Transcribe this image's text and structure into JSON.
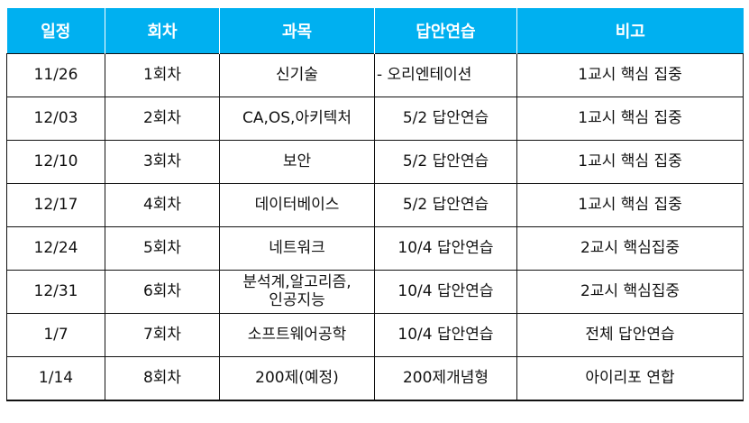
{
  "header": [
    "일정",
    "회차",
    "과목",
    "답안연습",
    "비고"
  ],
  "rows": [
    {
      "date": "11/26",
      "session": "1회차",
      "subject": "신기술",
      "practice": "- 오리엔테이션",
      "note": "1교시 핵심 집중"
    },
    {
      "date": "12/03",
      "session": "2회차",
      "subject": "CA,OS,아키텍처",
      "practice": "5/2 답안연습",
      "note": "1교시 핵심 집중"
    },
    {
      "date": "12/10",
      "session": "3회차",
      "subject": "보안",
      "practice": "5/2 답안연습",
      "note": "1교시 핵심 집중"
    },
    {
      "date": "12/17",
      "session": "4회차",
      "subject": "데이터베이스",
      "practice": "5/2 답안연습",
      "note": "1교시 핵심 집중"
    },
    {
      "date": "12/24",
      "session": "5회차",
      "subject": "네트워크",
      "practice": "10/4 답안연습",
      "note": "2교시 핵심집중"
    },
    {
      "date": "12/31",
      "session": "6회차",
      "subject_line1": "분석계,알고리즘,",
      "subject_line2": "인공지능",
      "practice": "10/4 답안연습",
      "note": "2교시 핵심집중"
    },
    {
      "date": "1/7",
      "session": "7회차",
      "subject": "소프트웨어공학",
      "practice": "10/4 답안연습",
      "note": "전체 답안연습"
    },
    {
      "date": "1/14",
      "session": "8회차",
      "subject": "200제(예정)",
      "practice": "200제개념형",
      "note": "아이리포 연합"
    }
  ]
}
